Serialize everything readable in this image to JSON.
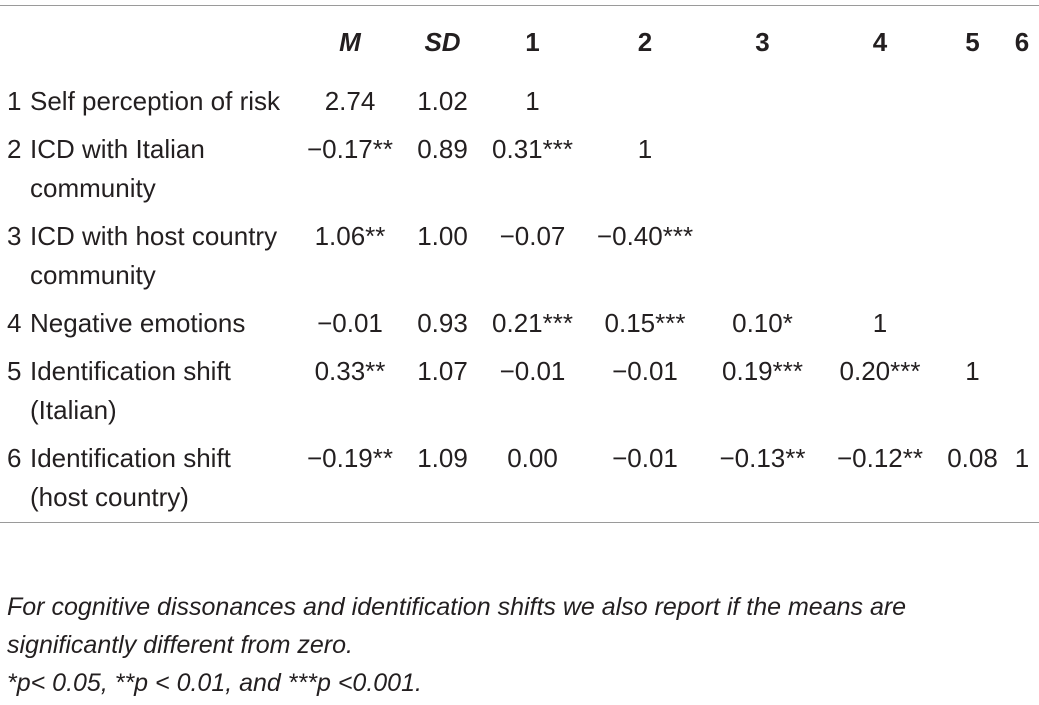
{
  "table": {
    "header": [
      "M",
      "SD",
      "1",
      "2",
      "3",
      "4",
      "5",
      "6"
    ],
    "rows": [
      {
        "number": "1",
        "label": "Self perception of risk",
        "cells": [
          "2.74",
          "1.02",
          "1"
        ]
      },
      {
        "number": "2",
        "label": "ICD with Italian community",
        "cells": [
          "−0.17**",
          "0.89",
          "0.31***",
          "1"
        ]
      },
      {
        "number": "3",
        "label": "ICD with host country community",
        "cells": [
          "1.06**",
          "1.00",
          "−0.07",
          "−0.40***"
        ]
      },
      {
        "number": "4",
        "label": "Negative emotions",
        "cells": [
          "−0.01",
          "0.93",
          "0.21***",
          "0.15***",
          "0.10*",
          "1"
        ]
      },
      {
        "number": "5",
        "label": "Identification shift (Italian)",
        "cells": [
          "0.33**",
          "1.07",
          "−0.01",
          "−0.01",
          "0.19***",
          "0.20***",
          "1"
        ]
      },
      {
        "number": "6",
        "label": "Identification shift (host country)",
        "cells": [
          "−0.19**",
          "1.09",
          "0.00",
          "−0.01",
          "−0.13**",
          "−0.12**",
          "0.08",
          "1"
        ]
      }
    ],
    "notes": [
      "For cognitive dissonances and identification shifts we also report if the means are significantly different from zero.",
      "*p< 0.05, **p < 0.01, and ***p <0.001."
    ]
  }
}
